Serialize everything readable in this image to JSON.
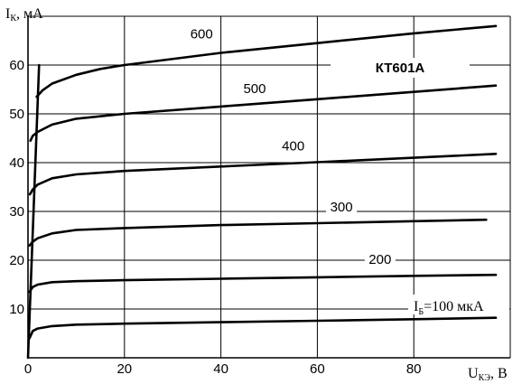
{
  "chart_data": {
    "type": "line",
    "title": "КТ601А",
    "ylabel": {
      "main": "I",
      "sub": "К",
      "unit": ", мА"
    },
    "xlabel": {
      "main": "U",
      "sub": "КЭ",
      "unit": ", В"
    },
    "xlim": [
      0,
      100
    ],
    "ylim": [
      0,
      70
    ],
    "xticks": [
      0,
      20,
      40,
      60,
      80
    ],
    "yticks": [
      10,
      20,
      30,
      40,
      50,
      60
    ],
    "grid": true,
    "base_label": {
      "main": "I",
      "sub": "Б",
      "value": "=100 мкА"
    },
    "series": [
      {
        "name": "100",
        "x": [
          0.3,
          1,
          2,
          5,
          10,
          20,
          40,
          60,
          80,
          97
        ],
        "y": [
          4,
          5.5,
          6,
          6.5,
          6.8,
          7.0,
          7.3,
          7.6,
          7.9,
          8.2
        ]
      },
      {
        "name": "200",
        "x": [
          0.3,
          1,
          2,
          5,
          10,
          20,
          40,
          60,
          80,
          97
        ],
        "y": [
          13.5,
          14.5,
          15,
          15.5,
          15.7,
          15.9,
          16.2,
          16.5,
          16.8,
          17.0
        ]
      },
      {
        "name": "300",
        "x": [
          0.3,
          1,
          2,
          5,
          10,
          20,
          40,
          60,
          80,
          95
        ],
        "y": [
          23,
          23.8,
          24.5,
          25.5,
          26.2,
          26.6,
          27.2,
          27.6,
          28.0,
          28.3
        ]
      },
      {
        "name": "400",
        "x": [
          0.4,
          1,
          2,
          5,
          10,
          20,
          40,
          60,
          80,
          97
        ],
        "y": [
          33.5,
          34.5,
          35.5,
          36.8,
          37.6,
          38.3,
          39.2,
          40.1,
          41.0,
          41.8
        ]
      },
      {
        "name": "500",
        "x": [
          0.5,
          1,
          2,
          5,
          10,
          20,
          40,
          60,
          80,
          97
        ],
        "y": [
          44.5,
          45.5,
          46.3,
          47.8,
          49.0,
          50.0,
          51.5,
          53.0,
          54.5,
          55.8
        ]
      },
      {
        "name": "600",
        "x": [
          1.8,
          3,
          5,
          10,
          15,
          20,
          40,
          60,
          80,
          97
        ],
        "y": [
          53.5,
          54.8,
          56.2,
          58.0,
          59.2,
          60.0,
          62.5,
          64.5,
          66.5,
          68.0
        ]
      }
    ],
    "series_label_at": [
      {
        "name": "100",
        "x": null,
        "y": null
      },
      {
        "name": "200",
        "x": 73,
        "y": 19.3
      },
      {
        "name": "300",
        "x": 65,
        "y": 30
      },
      {
        "name": "400",
        "x": 55,
        "y": 42.5
      },
      {
        "name": "500",
        "x": 47,
        "y": 54.3
      },
      {
        "name": "600",
        "x": 36,
        "y": 65.5
      }
    ],
    "envelope": {
      "x": [
        0,
        2.3
      ],
      "y": [
        0,
        60
      ]
    }
  }
}
